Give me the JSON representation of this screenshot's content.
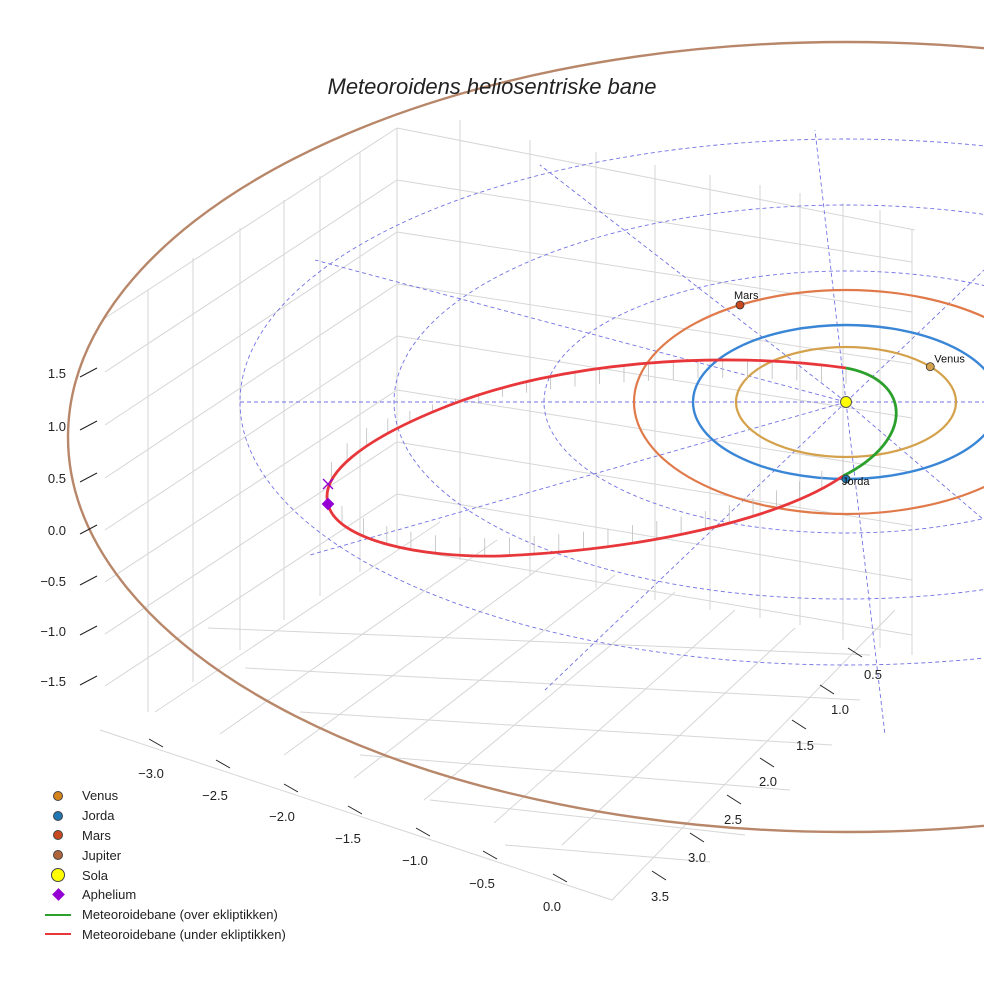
{
  "chart_data": {
    "type": "3d-line",
    "title": "Meteoroidens heliosentriske bane",
    "z_ticks": [
      "1.5",
      "1.0",
      "0.5",
      "0.0",
      "−0.5",
      "−1.0",
      "−1.5"
    ],
    "x_ticks": [
      "−3.0",
      "−2.5",
      "−2.0",
      "−1.5",
      "−1.0",
      "−0.5",
      "0.0"
    ],
    "y_ticks": [
      "0.5",
      "1.0",
      "1.5",
      "2.0",
      "2.5",
      "3.0",
      "3.5"
    ],
    "sun": {
      "label": "Sola",
      "x": 0,
      "y": 0,
      "z": 0,
      "color": "#ffff00"
    },
    "planets": [
      {
        "name": "Venus",
        "a": 0.72,
        "color": "#d4a24c",
        "orbit_color": "#d4a24c",
        "marker_angle_deg": -40
      },
      {
        "name": "Jorda",
        "a": 1.0,
        "color": "#1f77b4",
        "orbit_color": "#3a86d6",
        "marker_angle_deg": 90
      },
      {
        "name": "Mars",
        "a": 1.52,
        "color": "#c8481f",
        "orbit_color": "#e07a4a",
        "marker_angle_deg": -120
      },
      {
        "name": "Jupiter",
        "a": 5.2,
        "color": "#b07a5a",
        "orbit_color": "#b8876a",
        "marker_angle_deg": null
      }
    ],
    "meteoroid": {
      "aphelium_label": "Aphelium",
      "aphelium_x": -2.95,
      "segments": [
        {
          "name": "Meteoroidebane (over ekliptikken)",
          "color": "#2ca02c"
        },
        {
          "name": "Meteoroidebane (under ekliptikken)",
          "color": "#e8373b"
        }
      ]
    },
    "legend": [
      {
        "label": "Venus",
        "kind": "dot",
        "color": "#d4821a"
      },
      {
        "label": "Jorda",
        "kind": "dot",
        "color": "#1f77b4"
      },
      {
        "label": "Mars",
        "kind": "dot",
        "color": "#c8481f"
      },
      {
        "label": "Jupiter",
        "kind": "dot",
        "color": "#b0643a"
      },
      {
        "label": "Sola",
        "kind": "bigdot",
        "color": "#ffff00"
      },
      {
        "label": "Aphelium",
        "kind": "diamond",
        "color": "#9400d3"
      },
      {
        "label": "Meteoroidebane (over ekliptikken)",
        "kind": "line",
        "color": "#2ca02c"
      },
      {
        "label": "Meteoroidebane (under ekliptikken)",
        "kind": "line",
        "color": "#e8373b"
      }
    ]
  }
}
